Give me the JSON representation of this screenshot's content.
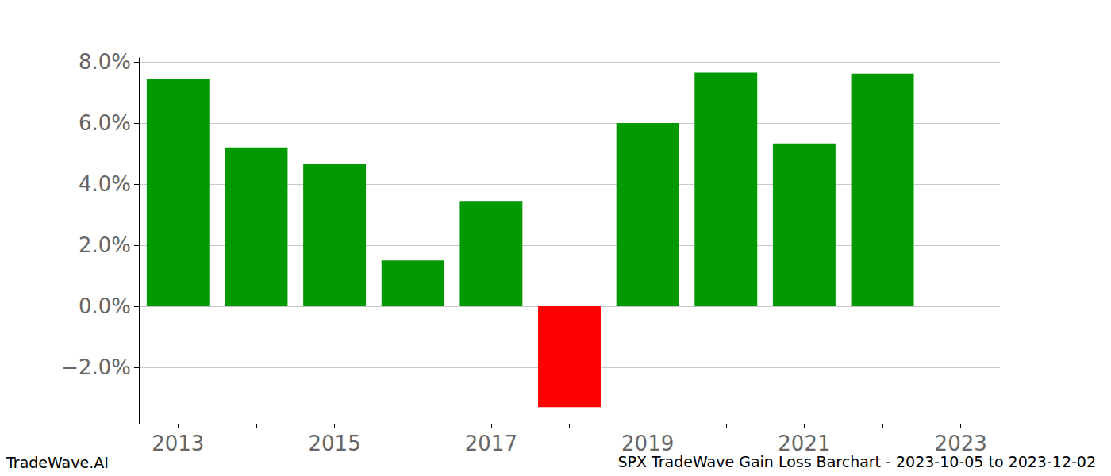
{
  "chart_data": {
    "type": "bar",
    "title": "SPX TradeWave Gain Loss Barchart - 2023-10-05 to 2023-12-02",
    "annotations": [
      "TradeWave.AI"
    ],
    "categories": [
      "2013",
      null,
      "2015",
      null,
      "2017",
      null,
      "2019",
      null,
      "2021",
      null,
      "2023"
    ],
    "values": [
      7.45,
      5.2,
      4.65,
      1.5,
      3.45,
      -3.3,
      6.0,
      7.65,
      5.33,
      7.62,
      null
    ],
    "colors": [
      "#009900",
      "#009900",
      "#009900",
      "#009900",
      "#009900",
      "#ff0000",
      "#009900",
      "#009900",
      "#009900",
      "#009900",
      "#009900"
    ],
    "ylim": [
      -3.84,
      8.13
    ],
    "yticks": [
      {
        "value": -2,
        "label": "−2.0%"
      },
      {
        "value": 0,
        "label": "0.0%"
      },
      {
        "value": 2,
        "label": "2.0%"
      },
      {
        "value": 4,
        "label": "4.0%"
      },
      {
        "value": 6,
        "label": "6.0%"
      },
      {
        "value": 8,
        "label": "8.0%"
      }
    ],
    "grid": true
  }
}
